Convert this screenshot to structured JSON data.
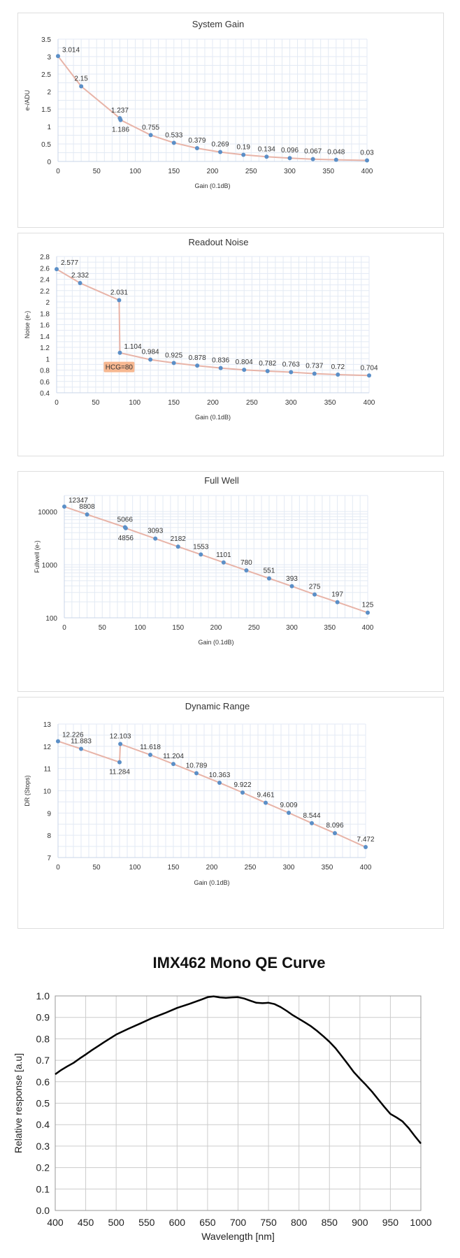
{
  "colors": {
    "marker": "#5b8fc7",
    "line": "#e8b4a8",
    "grid": "#e3eaf4",
    "hcg_badge_bg": "#f7b891",
    "hcg_badge_text": "#ffffff",
    "qe_line": "#000000",
    "qe_grid": "#cccccc"
  },
  "chart_data": [
    {
      "type": "line",
      "title": "System Gain",
      "xlabel": "Gain (0.1dB)",
      "ylabel": "e-/ADU",
      "xlim": [
        0,
        400
      ],
      "ylim": [
        0,
        3.5
      ],
      "xticks": [
        0,
        50,
        100,
        150,
        200,
        250,
        300,
        350,
        400
      ],
      "yticks": [
        0,
        0.5,
        1,
        1.5,
        2,
        2.5,
        3,
        3.5
      ],
      "ytick_labels": [
        "0",
        "0.5",
        "1",
        "1.5",
        "2",
        "2.5",
        "3",
        "3.5"
      ],
      "x": [
        0,
        30,
        80,
        81,
        120,
        150,
        180,
        210,
        240,
        270,
        300,
        330,
        360,
        400
      ],
      "y": [
        3.014,
        2.15,
        1.237,
        1.186,
        0.755,
        0.533,
        0.379,
        0.269,
        0.19,
        0.134,
        0.096,
        0.067,
        0.048,
        0.03
      ],
      "labels": [
        "3.014",
        "2.15",
        "1.237",
        "1.186",
        "0.755",
        "0.533",
        "0.379",
        "0.269",
        "0.19",
        "0.134",
        "0.096",
        "0.067",
        "0.048",
        "0.03"
      ],
      "label_pos": [
        "above-right",
        "above",
        "above",
        "below",
        "above",
        "above",
        "above",
        "above",
        "above",
        "above",
        "above",
        "above",
        "above",
        "above"
      ]
    },
    {
      "type": "line",
      "title": "Readout Noise",
      "xlabel": "Gain (0.1dB)",
      "ylabel": "Noise (e-)",
      "xlim": [
        0,
        400
      ],
      "ylim": [
        0.4,
        2.8
      ],
      "xticks": [
        0,
        50,
        100,
        150,
        200,
        250,
        300,
        350,
        400
      ],
      "yticks": [
        0.4,
        0.6,
        0.8,
        1,
        1.2,
        1.4,
        1.6,
        1.8,
        2,
        2.2,
        2.4,
        2.6,
        2.8
      ],
      "ytick_labels": [
        "0.4",
        "0.6",
        "0.8",
        "1",
        "1.2",
        "1.4",
        "1.6",
        "1.8",
        "2",
        "2.2",
        "2.4",
        "2.6",
        "2.8"
      ],
      "x": [
        0,
        30,
        80,
        81,
        120,
        150,
        180,
        210,
        240,
        270,
        300,
        330,
        360,
        400
      ],
      "y": [
        2.577,
        2.332,
        2.031,
        1.104,
        0.984,
        0.925,
        0.878,
        0.836,
        0.804,
        0.782,
        0.763,
        0.737,
        0.72,
        0.704
      ],
      "labels": [
        "2.577",
        "2.332",
        "2.031",
        "1.104",
        "0.984",
        "0.925",
        "0.878",
        "0.836",
        "0.804",
        "0.782",
        "0.763",
        "0.737",
        "0.72",
        "0.704"
      ],
      "label_pos": [
        "above-right",
        "above",
        "above",
        "above-right",
        "above",
        "above",
        "above",
        "above",
        "above",
        "above",
        "above",
        "above",
        "above",
        "above"
      ],
      "annotation": {
        "text": "HCG=80",
        "x": 80,
        "y": 0.86
      }
    },
    {
      "type": "line",
      "title": "Full Well",
      "xlabel": "Gain (0.1dB)",
      "ylabel": "Fullwell (e-)",
      "yscale": "log",
      "xlim": [
        0,
        400
      ],
      "ylim": [
        100,
        20000
      ],
      "xticks": [
        0,
        50,
        100,
        150,
        200,
        250,
        300,
        350,
        400
      ],
      "yticks": [
        100,
        1000,
        10000
      ],
      "ytick_labels": [
        "100",
        "1000",
        "10000"
      ],
      "x": [
        0,
        30,
        80,
        81,
        120,
        150,
        180,
        210,
        240,
        270,
        300,
        330,
        360,
        400
      ],
      "y": [
        12347,
        8808,
        5066,
        4856,
        3093,
        2182,
        1553,
        1101,
        780,
        551,
        393,
        275,
        197,
        125
      ],
      "labels": [
        "12347",
        "8808",
        "5066",
        "4856",
        "3093",
        "2182",
        "1553",
        "1101",
        "780",
        "551",
        "393",
        "275",
        "197",
        "125"
      ],
      "label_pos": [
        "above-right",
        "above",
        "above",
        "below",
        "above",
        "above",
        "above",
        "above",
        "above",
        "above",
        "above",
        "above",
        "above",
        "above"
      ]
    },
    {
      "type": "line",
      "title": "Dynamic Range",
      "xlabel": "Gain (0.1dB)",
      "ylabel": "DR (Stops)",
      "xlim": [
        0,
        400
      ],
      "ylim": [
        7,
        13
      ],
      "xticks": [
        0,
        50,
        100,
        150,
        200,
        250,
        300,
        350,
        400
      ],
      "yticks": [
        7,
        8,
        9,
        10,
        11,
        12,
        13
      ],
      "ytick_labels": [
        "7",
        "8",
        "9",
        "10",
        "11",
        "12",
        "13"
      ],
      "x": [
        0,
        30,
        80,
        81,
        120,
        150,
        180,
        210,
        240,
        270,
        300,
        330,
        360,
        400
      ],
      "y": [
        12.226,
        11.883,
        11.284,
        12.103,
        11.618,
        11.204,
        10.789,
        10.363,
        9.922,
        9.461,
        9.009,
        8.544,
        8.096,
        7.472
      ],
      "labels": [
        "12.226",
        "11.883",
        "11.284",
        "12.103",
        "11.618",
        "11.204",
        "10.789",
        "10.363",
        "9.922",
        "9.461",
        "9.009",
        "8.544",
        "8.096",
        "7.472"
      ],
      "label_pos": [
        "above-right",
        "above",
        "below",
        "above",
        "above",
        "above",
        "above",
        "above",
        "above",
        "above",
        "above",
        "above",
        "above",
        "above"
      ]
    },
    {
      "type": "line",
      "title": "IMX462 Mono QE Curve",
      "xlabel": "Wavelength [nm]",
      "ylabel": "Relative response [a.u]",
      "xlim": [
        400,
        1000
      ],
      "ylim": [
        0,
        1.0
      ],
      "xticks": [
        400,
        450,
        500,
        550,
        600,
        650,
        700,
        750,
        800,
        850,
        900,
        950,
        1000
      ],
      "yticks": [
        0,
        0.1,
        0.2,
        0.3,
        0.4,
        0.5,
        0.6,
        0.7,
        0.8,
        0.9,
        1.0
      ],
      "ytick_labels": [
        "0.0",
        "0.1",
        "0.2",
        "0.3",
        "0.4",
        "0.5",
        "0.6",
        "0.7",
        "0.8",
        "0.9",
        "1.0"
      ],
      "x": [
        400,
        410,
        420,
        430,
        440,
        450,
        460,
        470,
        480,
        490,
        500,
        520,
        540,
        560,
        580,
        600,
        620,
        640,
        650,
        660,
        670,
        680,
        690,
        700,
        710,
        720,
        730,
        740,
        750,
        760,
        770,
        780,
        790,
        800,
        810,
        820,
        830,
        840,
        850,
        860,
        870,
        880,
        890,
        900,
        910,
        920,
        930,
        940,
        950,
        960,
        970,
        980,
        990,
        1000
      ],
      "y": [
        0.635,
        0.655,
        0.672,
        0.688,
        0.708,
        0.727,
        0.747,
        0.765,
        0.784,
        0.802,
        0.82,
        0.847,
        0.872,
        0.898,
        0.92,
        0.944,
        0.963,
        0.983,
        0.994,
        0.998,
        0.993,
        0.991,
        0.993,
        0.994,
        0.988,
        0.978,
        0.968,
        0.966,
        0.968,
        0.962,
        0.948,
        0.93,
        0.91,
        0.893,
        0.876,
        0.858,
        0.836,
        0.812,
        0.786,
        0.756,
        0.72,
        0.683,
        0.645,
        0.614,
        0.585,
        0.553,
        0.518,
        0.483,
        0.45,
        0.434,
        0.415,
        0.384,
        0.347,
        0.312
      ]
    }
  ]
}
